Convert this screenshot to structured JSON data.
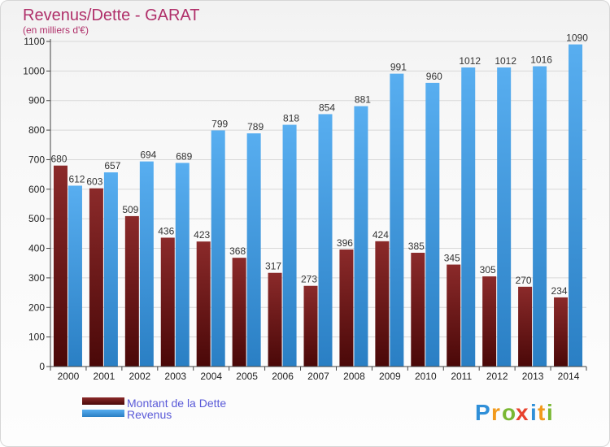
{
  "chart_data": {
    "type": "bar",
    "title": "Revenus/Dette - GARAT",
    "subtitle": "(en milliers d'€)",
    "categories": [
      "2000",
      "2001",
      "2002",
      "2003",
      "2004",
      "2005",
      "2006",
      "2007",
      "2008",
      "2009",
      "2010",
      "2011",
      "2012",
      "2013",
      "2014"
    ],
    "series": [
      {
        "name": "Montant de la Dette",
        "color": "#7a1a1a",
        "values": [
          680,
          603,
          509,
          436,
          423,
          368,
          317,
          273,
          396,
          424,
          385,
          345,
          305,
          270,
          234
        ]
      },
      {
        "name": "Revenus",
        "color": "#3f9be0",
        "values": [
          612,
          657,
          694,
          689,
          799,
          789,
          818,
          854,
          881,
          991,
          960,
          1012,
          1012,
          1016,
          1090
        ]
      }
    ],
    "ylim": [
      0,
      1100
    ],
    "yticks": [
      0,
      100,
      200,
      300,
      400,
      500,
      600,
      700,
      800,
      900,
      1000,
      1100
    ],
    "grid": true,
    "legend_position": "bottom-left"
  },
  "logo": {
    "letters": [
      "P",
      "r",
      "o",
      "x",
      "i",
      "t",
      "i"
    ],
    "colors": [
      "#2f8fd8",
      "#f29a1c",
      "#7ab833",
      "#e8422d",
      "#2f8fd8",
      "#f29a1c",
      "#7ab833"
    ]
  }
}
